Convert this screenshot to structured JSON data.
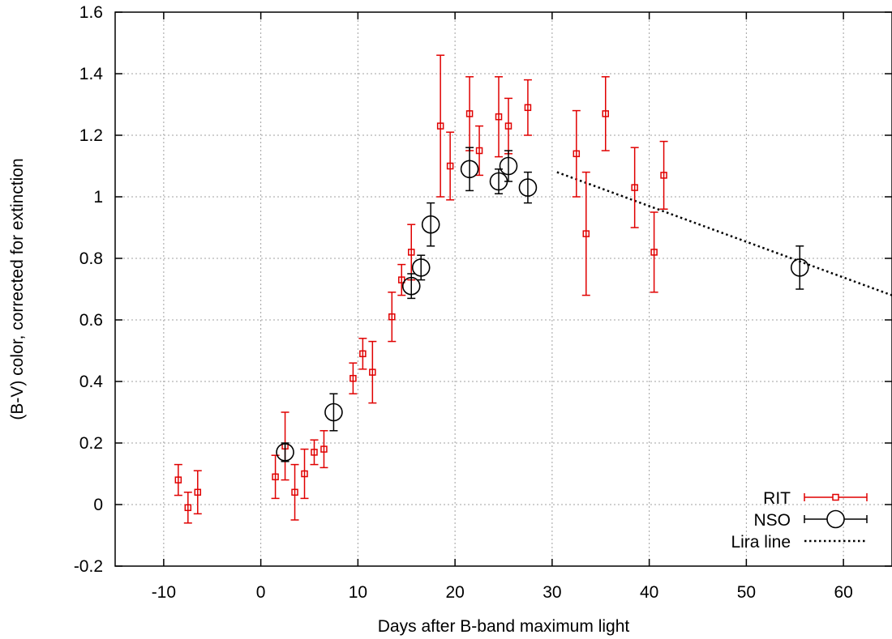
{
  "chart_data": {
    "type": "scatter",
    "xlabel": "Days after B-band maximum light",
    "ylabel": "(B-V) color, corrected for extinction",
    "xlim": [
      -15,
      65
    ],
    "ylim": [
      -0.2,
      1.6
    ],
    "xticks": [
      "-10",
      "0",
      "10",
      "20",
      "30",
      "40",
      "50",
      "60"
    ],
    "yticks": [
      "-0.2",
      "0",
      "0.2",
      "0.4",
      "0.6",
      "0.8",
      "1",
      "1.2",
      "1.4",
      "1.6"
    ],
    "grid": true,
    "legend_position": "bottom-right",
    "series": [
      {
        "name": "RIT",
        "color": "#e00000",
        "marker": "square",
        "points": [
          {
            "x": -8.5,
            "y": 0.08,
            "err": 0.05
          },
          {
            "x": -7.5,
            "y": -0.01,
            "err": 0.05
          },
          {
            "x": -6.5,
            "y": 0.04,
            "err": 0.07
          },
          {
            "x": 1.5,
            "y": 0.09,
            "err": 0.07
          },
          {
            "x": 2.5,
            "y": 0.19,
            "err": 0.11
          },
          {
            "x": 3.5,
            "y": 0.04,
            "err": 0.09
          },
          {
            "x": 4.5,
            "y": 0.1,
            "err": 0.08
          },
          {
            "x": 5.5,
            "y": 0.17,
            "err": 0.04
          },
          {
            "x": 6.5,
            "y": 0.18,
            "err": 0.06
          },
          {
            "x": 9.5,
            "y": 0.41,
            "err": 0.05
          },
          {
            "x": 10.5,
            "y": 0.49,
            "err": 0.05
          },
          {
            "x": 11.5,
            "y": 0.43,
            "err": 0.1
          },
          {
            "x": 13.5,
            "y": 0.61,
            "err": 0.08
          },
          {
            "x": 14.5,
            "y": 0.73,
            "err": 0.05
          },
          {
            "x": 15.5,
            "y": 0.82,
            "err": 0.09
          },
          {
            "x": 18.5,
            "y": 1.23,
            "err": 0.23
          },
          {
            "x": 19.5,
            "y": 1.1,
            "err": 0.11
          },
          {
            "x": 21.5,
            "y": 1.27,
            "err": 0.12
          },
          {
            "x": 22.5,
            "y": 1.15,
            "err": 0.08
          },
          {
            "x": 24.5,
            "y": 1.26,
            "err": 0.13
          },
          {
            "x": 25.5,
            "y": 1.23,
            "err": 0.09
          },
          {
            "x": 27.5,
            "y": 1.29,
            "err": 0.09
          },
          {
            "x": 32.5,
            "y": 1.14,
            "err": 0.14
          },
          {
            "x": 33.5,
            "y": 0.88,
            "err": 0.2
          },
          {
            "x": 35.5,
            "y": 1.27,
            "err": 0.12
          },
          {
            "x": 38.5,
            "y": 1.03,
            "err": 0.13
          },
          {
            "x": 40.5,
            "y": 0.82,
            "err": 0.13
          },
          {
            "x": 41.5,
            "y": 1.07,
            "err": 0.11
          }
        ]
      },
      {
        "name": "NSO",
        "color": "#000000",
        "marker": "circle",
        "points": [
          {
            "x": 2.5,
            "y": 0.17,
            "err": 0.03
          },
          {
            "x": 7.5,
            "y": 0.3,
            "err": 0.06
          },
          {
            "x": 15.5,
            "y": 0.71,
            "err": 0.04
          },
          {
            "x": 16.5,
            "y": 0.77,
            "err": 0.04
          },
          {
            "x": 17.5,
            "y": 0.91,
            "err": 0.07
          },
          {
            "x": 21.5,
            "y": 1.09,
            "err": 0.07
          },
          {
            "x": 24.5,
            "y": 1.05,
            "err": 0.04
          },
          {
            "x": 25.5,
            "y": 1.1,
            "err": 0.05
          },
          {
            "x": 27.5,
            "y": 1.03,
            "err": 0.05
          },
          {
            "x": 55.5,
            "y": 0.77,
            "err": 0.07
          }
        ]
      },
      {
        "name": "Lira line",
        "color": "#000000",
        "type": "line",
        "style": "dotted",
        "x": [
          30.5,
          65
        ],
        "y": [
          1.08,
          0.68
        ]
      }
    ]
  }
}
